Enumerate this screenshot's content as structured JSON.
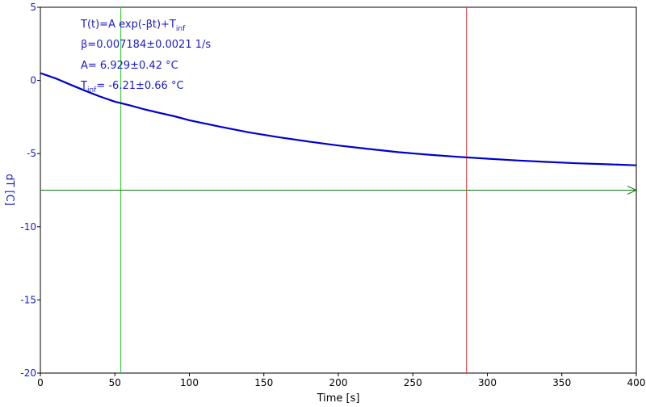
{
  "chart_data": {
    "type": "line",
    "xlabel": "Time [s]",
    "ylabel": "dT [C]",
    "xlim": [
      0,
      400
    ],
    "ylim": [
      -20,
      5
    ],
    "x_ticks": [
      0,
      50,
      100,
      150,
      200,
      250,
      300,
      350,
      400
    ],
    "y_ticks": [
      5,
      0,
      -5,
      -10,
      -15,
      -20
    ],
    "grid": false,
    "colors": {
      "series": "#0000cc",
      "text": "#1a1acc",
      "marker_green": "#22cc22",
      "marker_red": "#dd2222",
      "baseline": "#117711",
      "frame": "#000000"
    },
    "annotations": {
      "line1_main": "T(t)=A exp(-βt)+T",
      "line1_sub": "inf",
      "line2": "β=0.007184±0.0021 1/s",
      "line3": "A= 6.929±0.42 °C",
      "line4_prefix": "T",
      "line4_sub": "inf",
      "line4_rest": "= -6.21±0.66 °C"
    },
    "series": [
      {
        "values_x": [
          0,
          10,
          20,
          30,
          40,
          50,
          60,
          70,
          80,
          90,
          100,
          120,
          140,
          160,
          180,
          200,
          220,
          240,
          260,
          280,
          300,
          320,
          340,
          360,
          380,
          400
        ],
        "values_y": [
          0.5,
          0.15,
          -0.28,
          -0.7,
          -1.1,
          -1.45,
          -1.7,
          -1.98,
          -2.22,
          -2.45,
          -2.72,
          -3.15,
          -3.55,
          -3.88,
          -4.18,
          -4.45,
          -4.68,
          -4.9,
          -5.07,
          -5.22,
          -5.35,
          -5.47,
          -5.57,
          -5.66,
          -5.73,
          -5.8
        ]
      }
    ],
    "vertical_markers": [
      {
        "x": 54,
        "color": "green"
      },
      {
        "x": 286,
        "color": "red"
      }
    ],
    "horizontal_line": {
      "y": -7.5,
      "arrow": "right"
    }
  }
}
